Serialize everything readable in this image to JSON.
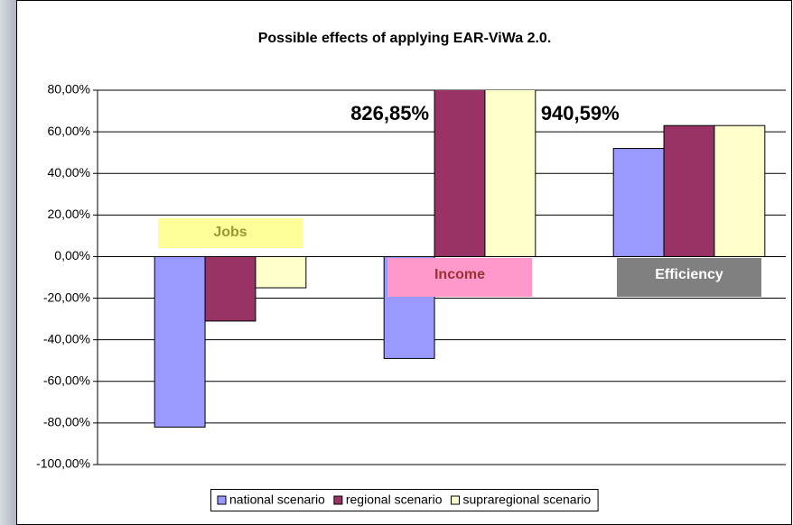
{
  "chart_data": {
    "type": "bar",
    "title": "Possible effects of applying EAR-ViWa 2.0.",
    "categories": [
      "Jobs",
      "Income",
      "Efficiency"
    ],
    "category_colors": [
      {
        "fill": "#ffff99",
        "text": "#999933"
      },
      {
        "fill": "#ff99cc",
        "text": "#993333"
      },
      {
        "fill": "#808080",
        "text": "#ffffff"
      }
    ],
    "series": [
      {
        "name": "national scenario",
        "color": "#9999ff",
        "values": [
          -82,
          -49,
          52
        ]
      },
      {
        "name": "regional scenario",
        "color": "#993366",
        "values": [
          -31,
          826.85,
          63
        ],
        "value_labels": [
          null,
          "826,85%",
          null
        ]
      },
      {
        "name": "supraregional scenario",
        "color": "#ffffcc",
        "values": [
          -15,
          940.59,
          63
        ],
        "value_labels": [
          null,
          "940,59%",
          null
        ]
      }
    ],
    "ylim": [
      -100,
      80
    ],
    "yticks": [
      {
        "value": -100,
        "label": "-100,00%"
      },
      {
        "value": -80,
        "label": "-80,00%"
      },
      {
        "value": -60,
        "label": "-60,00%"
      },
      {
        "value": -40,
        "label": "-40,00%"
      },
      {
        "value": -20,
        "label": "-20,00%"
      },
      {
        "value": 0,
        "label": "0,00%"
      },
      {
        "value": 20,
        "label": "20,00%"
      },
      {
        "value": 40,
        "label": "40,00%"
      },
      {
        "value": 60,
        "label": "60,00%"
      },
      {
        "value": 80,
        "label": "80,00%"
      }
    ],
    "grid": true,
    "legend": "bottom"
  }
}
